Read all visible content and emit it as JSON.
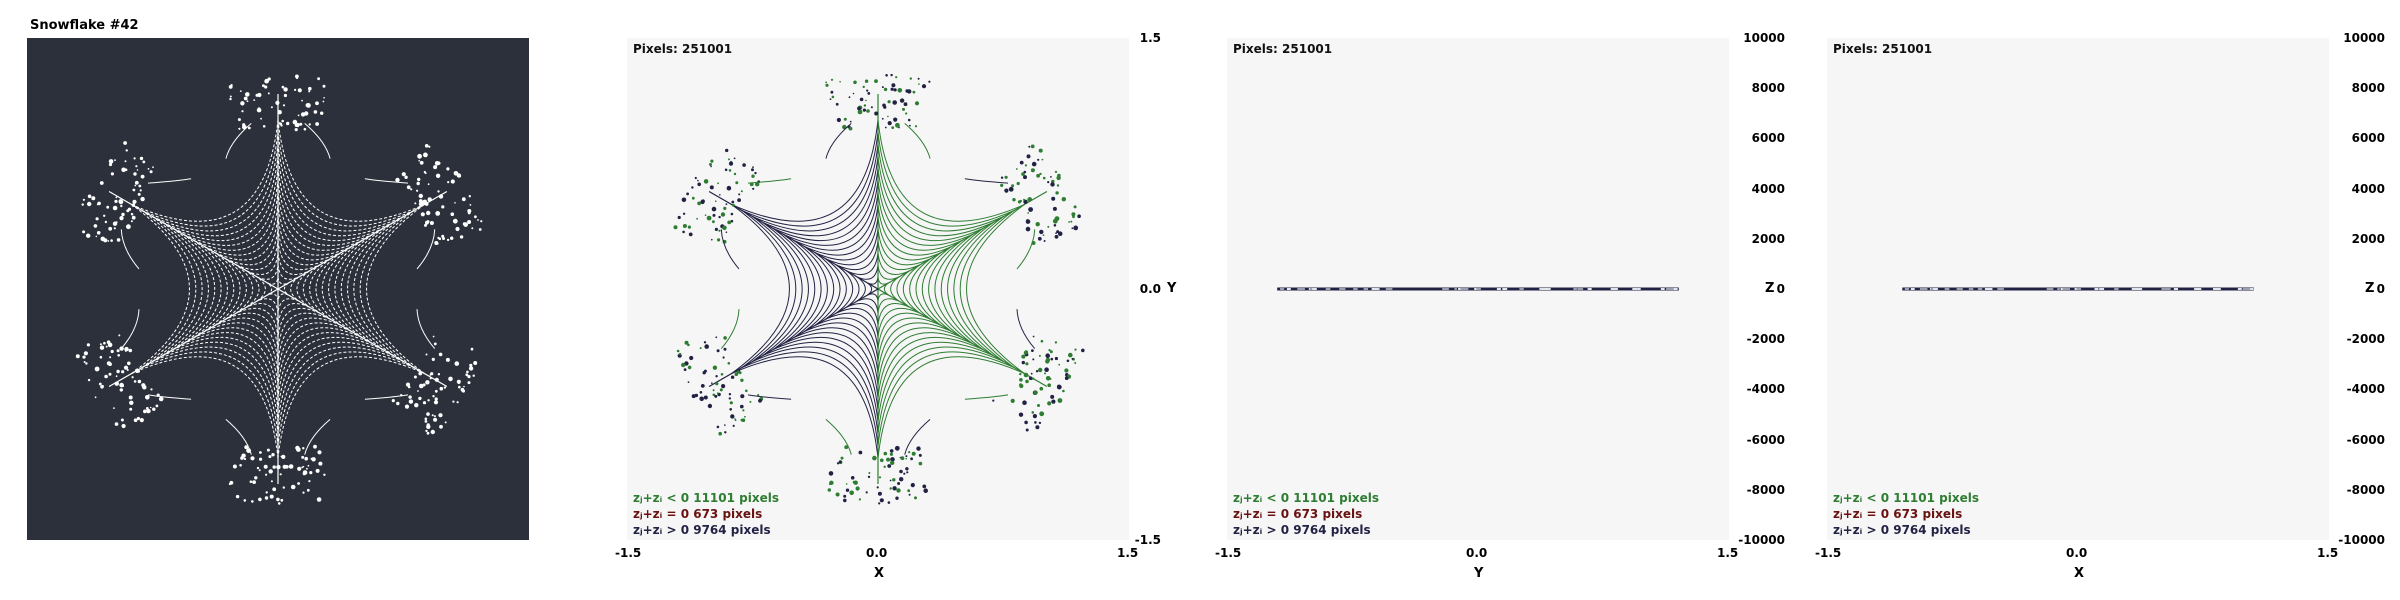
{
  "window_title": "Snowflake #42",
  "colors": {
    "preview_bg": "#2b303b",
    "plot_bg": "#f6f6f6",
    "neg": "#2e7d32",
    "zero": "#6a1111",
    "pos": "#222244",
    "white_curve": "#ffffff"
  },
  "pixels_label": "Pixels: 251001",
  "legend": [
    {
      "text": "zⱼ+zᵢ < 0  11101 pixels",
      "color": "#2e7d32"
    },
    {
      "text": "zⱼ+zᵢ = 0  673 pixels",
      "color": "#6a1111"
    },
    {
      "text": "zⱼ+zᵢ > 0  9764 pixels",
      "color": "#222244"
    }
  ],
  "chart_data": [
    {
      "type": "scatter",
      "title": "",
      "xlabel": "X",
      "ylabel": "Y",
      "xlim": [
        -1.5,
        1.5
      ],
      "ylim": [
        -1.5,
        1.5
      ],
      "x_ticks": [
        "-1.5",
        "0.0",
        "1.5"
      ],
      "y_ticks": [
        "1.5",
        "0.0",
        "-1.5"
      ],
      "counts": {
        "neg": 11101,
        "zero": 673,
        "pos": 9764,
        "total": 251001
      }
    },
    {
      "type": "scatter",
      "title": "",
      "xlabel": "Y",
      "ylabel": "Z",
      "xlim": [
        -1.5,
        1.5
      ],
      "ylim": [
        -10000,
        10000
      ],
      "x_ticks": [
        "-1.5",
        "0.0",
        "1.5"
      ],
      "y_ticks": [
        "10000",
        "8000",
        "6000",
        "4000",
        "2000",
        "0",
        "-2000",
        "-4000",
        "-6000",
        "-8000",
        "-10000"
      ],
      "z_band": [
        -1.2,
        1.2
      ]
    },
    {
      "type": "scatter",
      "title": "",
      "xlabel": "X",
      "ylabel": "Z",
      "xlim": [
        -1.5,
        1.5
      ],
      "ylim": [
        -10000,
        10000
      ],
      "x_ticks": [
        "-1.5",
        "0.0",
        "1.5"
      ],
      "y_ticks": [
        "10000",
        "8000",
        "6000",
        "4000",
        "2000",
        "0",
        "-2000",
        "-4000",
        "-6000",
        "-8000",
        "-10000"
      ],
      "z_band": [
        -1.05,
        1.05
      ]
    }
  ]
}
